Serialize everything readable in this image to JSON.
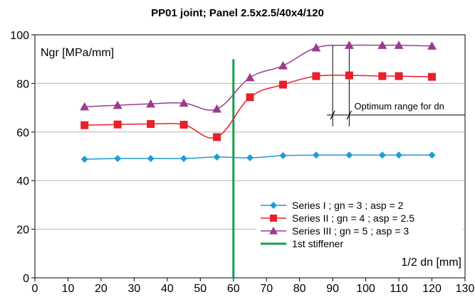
{
  "chart_data": {
    "type": "line",
    "title": "PP01 joint; Panel 2.5x2.5/40x4/120",
    "ylabel": "Ngr [MPa/mm]",
    "xlabel": "1/2 dn [mm]",
    "xlim": [
      0,
      130
    ],
    "ylim": [
      0,
      100
    ],
    "xticks": [
      0,
      10,
      20,
      30,
      40,
      50,
      60,
      70,
      80,
      90,
      100,
      110,
      120,
      130
    ],
    "yticks": [
      0,
      20,
      40,
      60,
      80,
      100
    ],
    "grid": "horizontal",
    "legend_position": "bottom-right",
    "series": [
      {
        "name": "Series I   ; gn = 3 ; asp = 2",
        "color": "#1f9bd7",
        "marker": "diamond",
        "x": [
          15,
          25,
          35,
          45,
          55,
          65,
          75,
          85,
          95,
          105,
          110,
          120
        ],
        "y": [
          48.8,
          49.1,
          49.1,
          49.1,
          49.7,
          49.4,
          50.3,
          50.5,
          50.5,
          50.5,
          50.5,
          50.5
        ]
      },
      {
        "name": "Series II  ; gn = 4 ; asp = 2.5",
        "color": "#e8202a",
        "marker": "square",
        "x": [
          15,
          25,
          35,
          45,
          55,
          65,
          75,
          85,
          95,
          105,
          110,
          120
        ],
        "y": [
          62.8,
          63.1,
          63.3,
          63.0,
          57.9,
          74.3,
          79.5,
          83.0,
          83.3,
          83.0,
          83.0,
          82.7
        ]
      },
      {
        "name": "Series III ; gn = 5 ; asp = 3",
        "color": "#9b3b8e",
        "marker": "triangle",
        "x": [
          15,
          25,
          35,
          45,
          55,
          65,
          75,
          85,
          95,
          105,
          110,
          120
        ],
        "y": [
          70.4,
          71.0,
          71.6,
          71.9,
          69.5,
          82.4,
          87.3,
          94.7,
          95.7,
          95.7,
          95.7,
          95.4
        ]
      }
    ],
    "stiffener": {
      "name": "1st  stiffener",
      "color": "#13a04a",
      "x": 60,
      "y_range": [
        0,
        90
      ]
    },
    "annotation": {
      "text": "Optimum range for dn",
      "x_range": [
        90,
        95
      ],
      "y": 67
    }
  }
}
